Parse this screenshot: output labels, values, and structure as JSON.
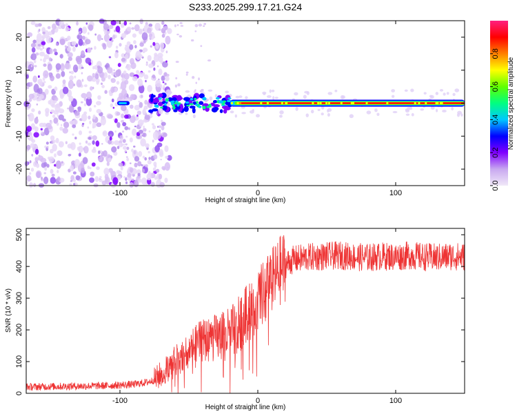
{
  "title": "S233.2025.299.17.21.G24",
  "chart_data": [
    {
      "type": "heatmap",
      "xlabel": "Height of straight line (km)",
      "ylabel": "Frequency (Hz)",
      "xlim": [
        -168,
        150
      ],
      "ylim": [
        -25,
        25
      ],
      "x_ticks": [
        -100,
        0,
        100
      ],
      "y_ticks": [
        -20,
        -10,
        0,
        10,
        20
      ],
      "colorbar": {
        "label": "Normalized spectral amplitude",
        "range": [
          0,
          1
        ],
        "ticks": [
          "0.0",
          "0.2",
          "0.4",
          "0.6",
          "0.8"
        ],
        "colors": [
          "#f0e8f8",
          "#c8a8f0",
          "#8000ff",
          "#0000ff",
          "#00c8ff",
          "#00ff80",
          "#60ff00",
          "#ffff00",
          "#ff8000",
          "#ff0000",
          "#ff2080"
        ]
      },
      "features": {
        "scatter_region_x": [
          -168,
          -70
        ],
        "signal_band_freq_hz": 0,
        "strong_band_x": [
          -20,
          150
        ]
      }
    },
    {
      "type": "line",
      "xlabel": "Height of straight line (km)",
      "ylabel": "SNR (10 * v/v)",
      "xlim": [
        -168,
        150
      ],
      "ylim": [
        0,
        520
      ],
      "x_ticks": [
        -100,
        0,
        100
      ],
      "y_ticks": [
        0,
        100,
        200,
        300,
        400,
        500
      ],
      "series": [
        {
          "color": "#ee3333",
          "x": [
            -168,
            -140,
            -110,
            -90,
            -80,
            -75,
            -70,
            -65,
            -60,
            -55,
            -50,
            -45,
            -40,
            -35,
            -30,
            -25,
            -20,
            -15,
            -10,
            -5,
            0,
            5,
            10,
            15,
            20,
            25,
            30,
            40,
            50,
            60,
            70,
            80,
            90,
            100,
            110,
            120,
            130,
            140,
            150
          ],
          "y": [
            20,
            22,
            24,
            28,
            35,
            42,
            60,
            80,
            100,
            120,
            140,
            155,
            165,
            170,
            175,
            180,
            190,
            210,
            240,
            265,
            290,
            320,
            350,
            380,
            405,
            420,
            425,
            430,
            432,
            435,
            430,
            428,
            432,
            430,
            435,
            430,
            428,
            432,
            430
          ]
        }
      ]
    }
  ]
}
